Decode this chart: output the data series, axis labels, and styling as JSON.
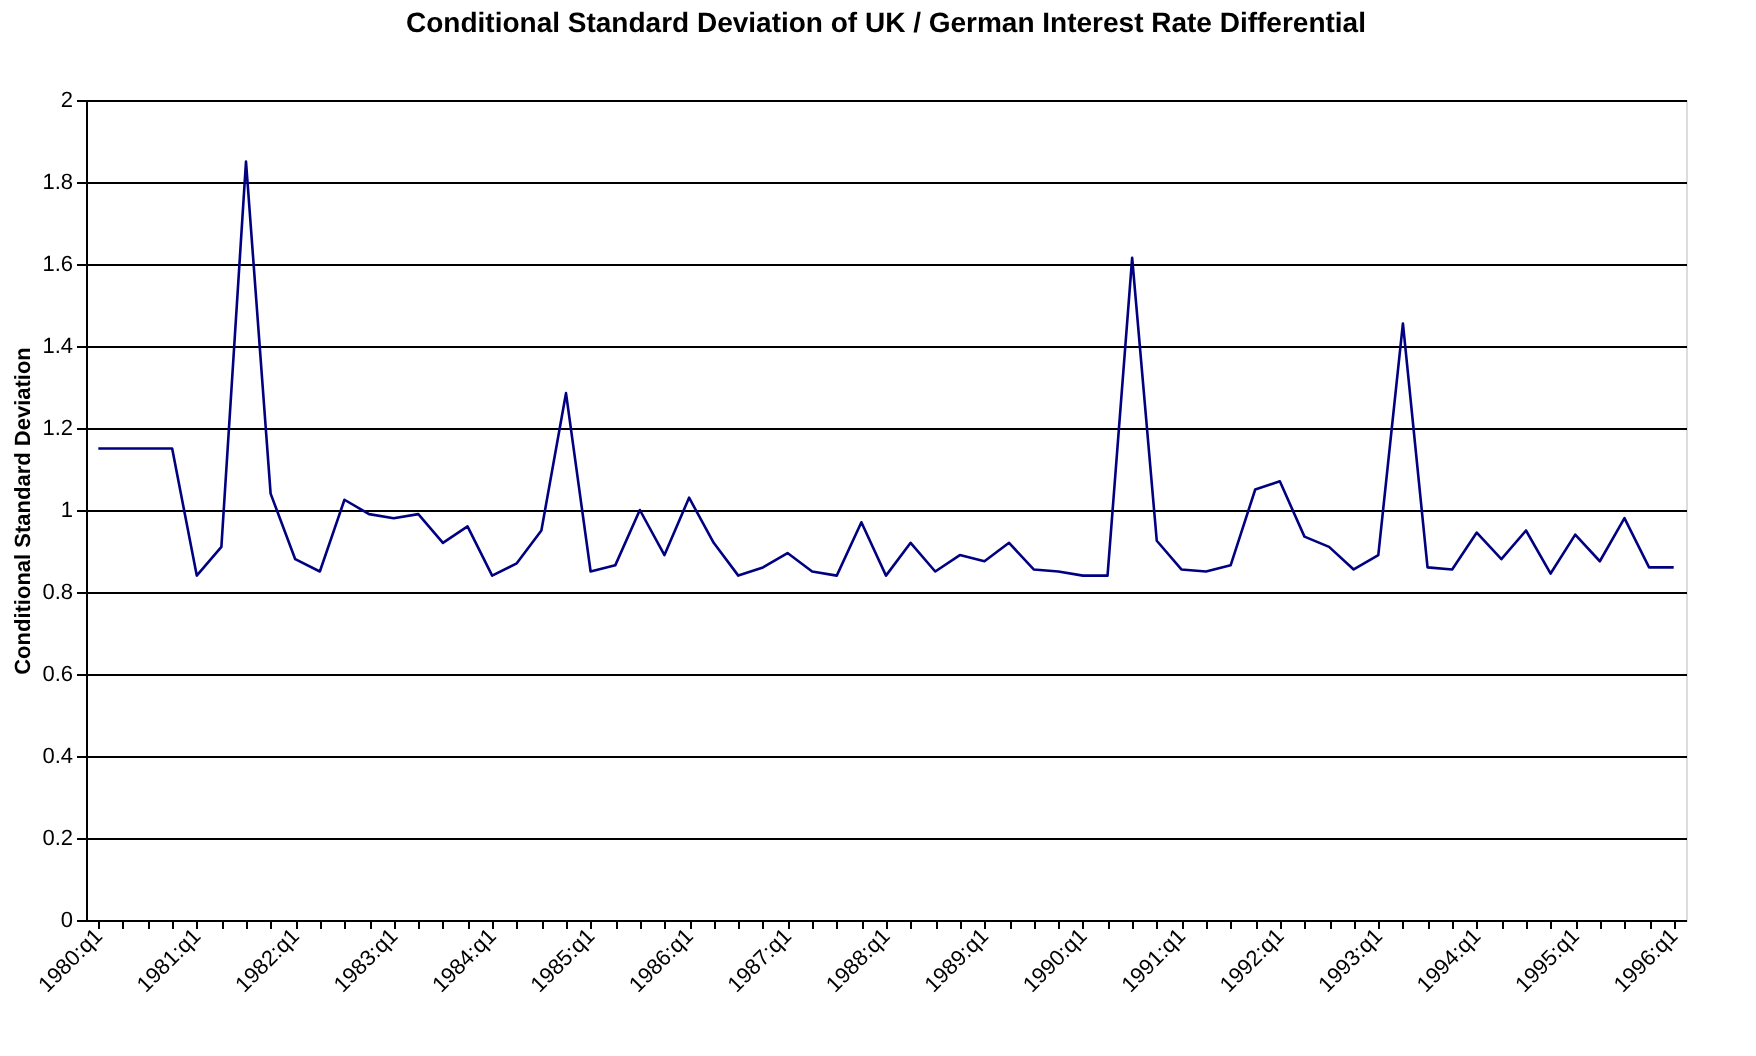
{
  "chart_data": {
    "type": "line",
    "title": "Conditional Standard Deviation of UK / German Interest Rate Differential",
    "ylabel": "Conditional Standard Deviation",
    "categories": [
      "1980:q1",
      null,
      null,
      null,
      "1981:q1",
      null,
      null,
      null,
      "1982:q1",
      null,
      null,
      null,
      "1983:q1",
      null,
      null,
      null,
      "1984:q1",
      null,
      null,
      null,
      "1985:q1",
      null,
      null,
      null,
      "1986:q1",
      null,
      null,
      null,
      "1987:q1",
      null,
      null,
      null,
      "1988:q1",
      null,
      null,
      null,
      "1989:q1",
      null,
      null,
      null,
      "1990:q1",
      null,
      null,
      null,
      "1991:q1",
      null,
      null,
      null,
      "1992:q1",
      null,
      null,
      null,
      "1993:q1",
      null,
      null,
      null,
      "1994:q1",
      null,
      null,
      null,
      "1995:q1",
      null,
      null,
      null,
      "1996:q1"
    ],
    "series": [
      {
        "color": "#000080",
        "values": [
          1.15,
          1.15,
          1.15,
          1.15,
          0.84,
          0.91,
          1.85,
          1.04,
          0.88,
          0.85,
          1.025,
          0.99,
          0.98,
          0.99,
          0.92,
          0.96,
          0.84,
          0.87,
          0.95,
          1.285,
          0.85,
          0.865,
          1.0,
          0.89,
          1.03,
          0.92,
          0.84,
          0.86,
          0.895,
          0.85,
          0.84,
          0.97,
          0.84,
          0.92,
          0.85,
          0.89,
          0.875,
          0.92,
          0.855,
          0.85,
          0.84,
          0.84,
          1.615,
          0.925,
          0.855,
          0.85,
          0.865,
          1.05,
          1.07,
          0.935,
          0.91,
          0.855,
          0.89,
          1.455,
          0.86,
          0.855,
          0.945,
          0.88,
          0.95,
          0.845,
          0.94,
          0.875,
          0.98,
          0.86,
          0.86
        ]
      }
    ],
    "ylim": [
      0,
      2
    ],
    "yticks": [
      0,
      0.2,
      0.4,
      0.6,
      0.8,
      1,
      1.2,
      1.4,
      1.6,
      1.8,
      2
    ],
    "grid": "y",
    "marker": "none",
    "line_style": "solid",
    "legend": false
  }
}
